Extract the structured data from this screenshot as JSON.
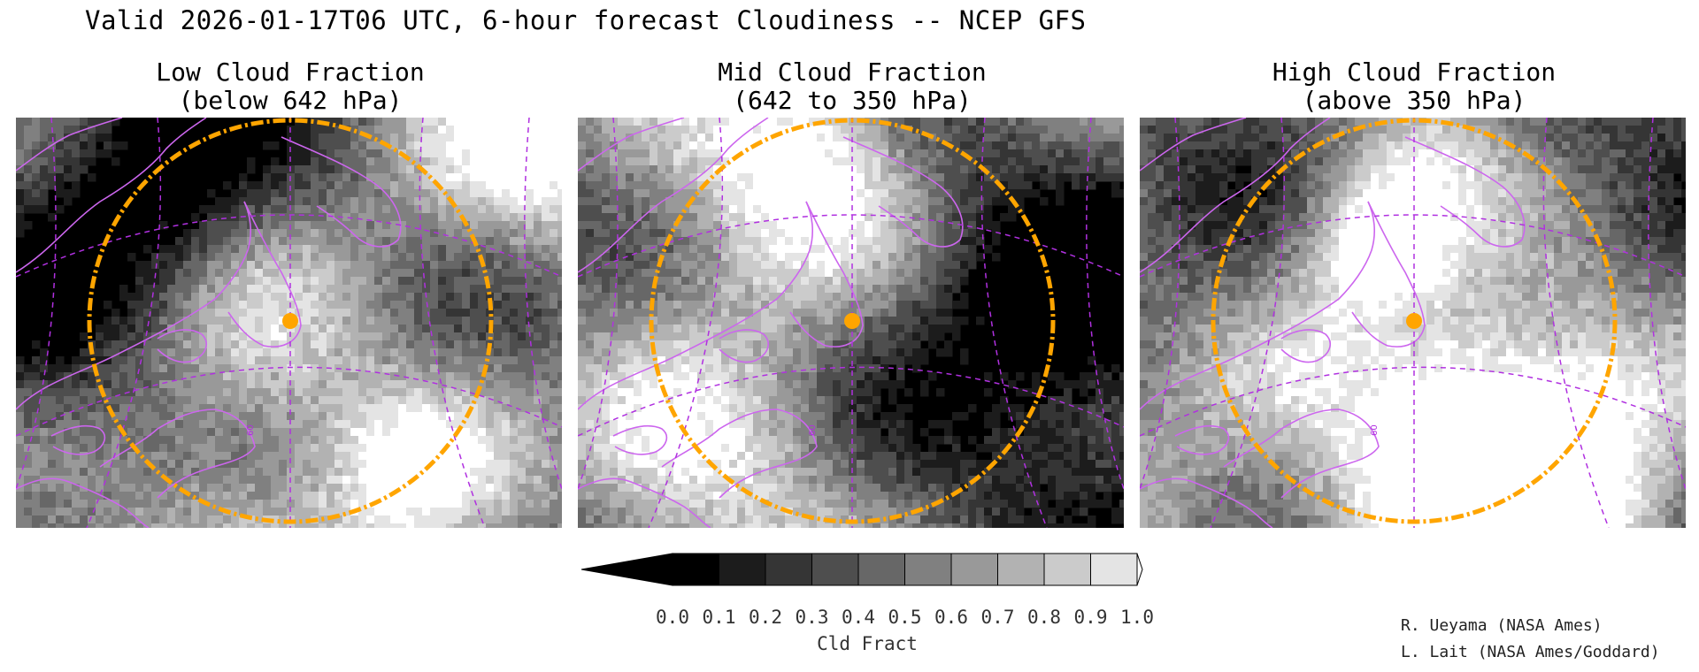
{
  "title": "Valid 2026-01-17T06 UTC, 6-hour forecast Cloudiness -- NCEP GFS",
  "panels": [
    {
      "title": "Low Cloud Fraction",
      "subtitle": "(below 642 hPa)",
      "seed": 11,
      "bias": 0.1
    },
    {
      "title": "Mid Cloud Fraction",
      "subtitle": "(642 to 350 hPa)",
      "seed": 29,
      "bias": -0.05
    },
    {
      "title": "High Cloud Fraction",
      "subtitle": "(above 350 hPa)",
      "seed": 47,
      "bias": -0.02
    }
  ],
  "map_labels": {
    "lat_label": "60"
  },
  "colorbar": {
    "label": "Cld Fract",
    "ticks": [
      "0.0",
      "0.1",
      "0.2",
      "0.3",
      "0.4",
      "0.5",
      "0.6",
      "0.7",
      "0.8",
      "0.9",
      "1.0"
    ],
    "colors": [
      "#000000",
      "#1c1c1c",
      "#353535",
      "#4e4e4e",
      "#676767",
      "#808080",
      "#999999",
      "#b2b2b2",
      "#cbcbcb",
      "#e4e4e4"
    ],
    "extend_low_color": "#000000",
    "extend_high_color": "#ffffff"
  },
  "colors": {
    "coast": "#cc66ee",
    "grid": "#b030e0",
    "ring": "#ffa500",
    "marker": "#ffa500"
  },
  "credits": [
    "R. Ueyama (NASA Ames)",
    "L. Lait (NASA Ames/Goddard)"
  ]
}
